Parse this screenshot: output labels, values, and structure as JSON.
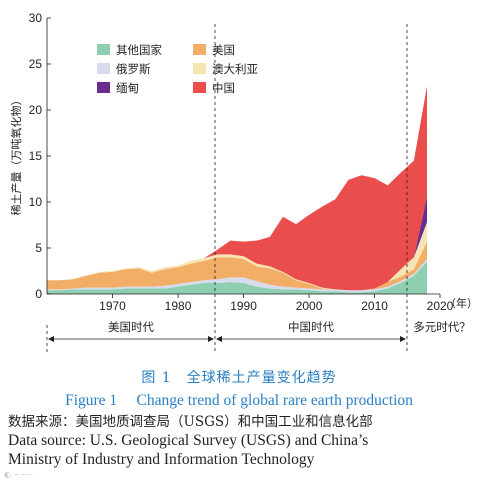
{
  "chart_data": {
    "type": "area",
    "stacked": true,
    "ylabel": "稀土产量（万吨氧化物）",
    "xlabel": "",
    "x_unit_label": "（年）",
    "ylim": [
      0,
      30
    ],
    "xlim": [
      1960,
      2018
    ],
    "yticks": [
      0,
      5,
      10,
      15,
      20,
      25,
      30
    ],
    "xticks": [
      1970,
      1980,
      1990,
      2000,
      2010,
      2020
    ],
    "legend_position": "top-left",
    "grid": false,
    "x": [
      1960,
      1962,
      1964,
      1966,
      1968,
      1970,
      1972,
      1974,
      1976,
      1978,
      1980,
      1982,
      1984,
      1986,
      1988,
      1990,
      1992,
      1994,
      1996,
      1998,
      2000,
      2002,
      2004,
      2006,
      2008,
      2010,
      2012,
      2014,
      2016,
      2018
    ],
    "series": [
      {
        "name": "其他国家",
        "color": "#8fcfb1",
        "values": [
          0.4,
          0.4,
          0.5,
          0.5,
          0.5,
          0.5,
          0.6,
          0.6,
          0.6,
          0.6,
          0.8,
          1.0,
          1.2,
          1.2,
          1.3,
          1.2,
          0.8,
          0.6,
          0.5,
          0.5,
          0.4,
          0.3,
          0.3,
          0.2,
          0.2,
          0.3,
          0.6,
          1.2,
          2.0,
          3.5
        ]
      },
      {
        "name": "俄罗斯",
        "color": "#d6dcee",
        "values": [
          0.1,
          0.1,
          0.1,
          0.2,
          0.2,
          0.2,
          0.2,
          0.2,
          0.2,
          0.3,
          0.3,
          0.3,
          0.3,
          0.4,
          0.5,
          0.6,
          0.6,
          0.4,
          0.3,
          0.2,
          0.2,
          0.2,
          0.2,
          0.2,
          0.2,
          0.2,
          0.2,
          0.2,
          0.2,
          0.3
        ]
      },
      {
        "name": "美国",
        "color": "#f2ad66",
        "values": [
          1.0,
          1.0,
          1.0,
          1.3,
          1.6,
          1.7,
          1.9,
          2.0,
          1.5,
          1.8,
          1.8,
          2.0,
          2.1,
          2.4,
          2.2,
          2.0,
          1.6,
          1.8,
          1.5,
          0.8,
          0.5,
          0.1,
          0.0,
          0.0,
          0.0,
          0.1,
          0.5,
          0.5,
          0.5,
          1.9
        ]
      },
      {
        "name": "澳大利亚",
        "color": "#f6e4b1",
        "values": [
          0.0,
          0.0,
          0.0,
          0.0,
          0.1,
          0.1,
          0.1,
          0.1,
          0.2,
          0.2,
          0.2,
          0.3,
          0.3,
          0.3,
          0.3,
          0.3,
          0.3,
          0.2,
          0.1,
          0.1,
          0.1,
          0.1,
          0.0,
          0.0,
          0.0,
          0.0,
          0.0,
          0.8,
          1.3,
          2.1
        ]
      },
      {
        "name": "缅甸",
        "color": "#6a2c8f",
        "values": [
          0,
          0,
          0,
          0,
          0,
          0,
          0,
          0,
          0,
          0,
          0,
          0,
          0,
          0,
          0,
          0,
          0,
          0,
          0,
          0,
          0,
          0,
          0,
          0,
          0,
          0,
          0,
          0,
          0,
          2.8
        ]
      },
      {
        "name": "中国",
        "color": "#e94e4d",
        "values": [
          0,
          0,
          0,
          0,
          0,
          0,
          0,
          0,
          0,
          0,
          0,
          0,
          0,
          0.5,
          1.5,
          1.6,
          2.5,
          3.2,
          6.0,
          6.0,
          7.4,
          8.8,
          9.8,
          12.0,
          12.5,
          12.0,
          10.5,
          10.5,
          10.5,
          12.0
        ]
      }
    ],
    "eras": [
      {
        "label": "美国时代"
      },
      {
        "label": "中国时代"
      },
      {
        "label": "多元时代？"
      }
    ]
  },
  "caption": {
    "zh": "图 1　全球稀土产量变化趋势",
    "en": "Figure 1　 Change trend of global rare earth production"
  },
  "source": {
    "zh": "数据来源：美国地质调查局（USGS）和中国工业和信息化部",
    "en_line1": "Data source: U.S. Geological Survey (USGS) and China’s",
    "en_line2": "Ministry of Industry and Information Technology"
  }
}
